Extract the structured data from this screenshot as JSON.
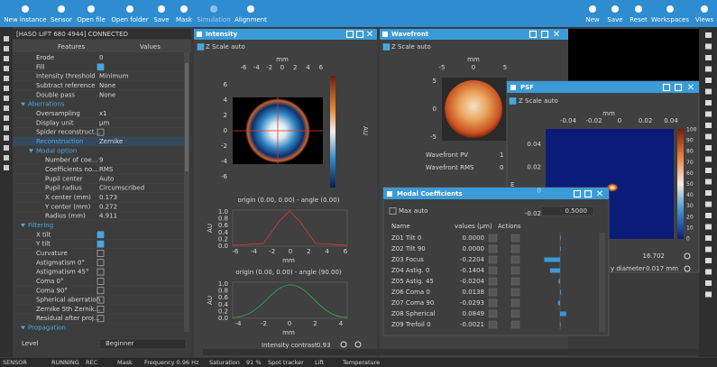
{
  "toolbar": {
    "left": [
      "New instance",
      "Sensor",
      "Open file",
      "Open folder",
      "Save",
      "Mask",
      "Simulation",
      "Alignment"
    ],
    "right": [
      "New",
      "Save",
      "Reset",
      "Workspaces",
      "Views"
    ]
  },
  "properties": {
    "device": "[HASO LIFT 680 4944] CONNECTED",
    "headers": [
      "Features",
      "Values"
    ],
    "rows": [
      {
        "label": "Erode",
        "value": "0"
      },
      {
        "label": "Fill",
        "checked": true
      },
      {
        "label": "Intensity threshold",
        "value": "Minimum"
      },
      {
        "label": "Subtract reference",
        "value": "None"
      },
      {
        "label": "Double pass",
        "value": "None"
      }
    ],
    "sections": [
      {
        "name": "Aberrations",
        "rows": [
          {
            "label": "Oversampling",
            "value": "x1"
          },
          {
            "label": "Display unit",
            "value": "µm"
          },
          {
            "label": "Spider reconstruct...",
            "checked": false
          },
          {
            "label": "Reconstruction",
            "value": "Zernike",
            "selected": true
          }
        ],
        "subsections": [
          {
            "name": "Modal option",
            "rows": [
              {
                "label": "Number of coe...",
                "value": "9"
              },
              {
                "label": "Coefficients no...",
                "value": "RMS"
              },
              {
                "label": "Pupil center",
                "value": "Auto"
              },
              {
                "label": "Pupil radius",
                "value": "Circumscribed"
              },
              {
                "label": "X center (mm)",
                "value": "0.173"
              },
              {
                "label": "Y center (mm)",
                "value": "0.272"
              },
              {
                "label": "Radius (mm)",
                "value": "4.911"
              }
            ]
          }
        ]
      },
      {
        "name": "Filtering",
        "rows": [
          {
            "label": "X tilt",
            "checked": true
          },
          {
            "label": "Y tilt",
            "checked": true
          },
          {
            "label": "Curvature",
            "checked": false
          },
          {
            "label": "Astigmatism 0°",
            "checked": false
          },
          {
            "label": "Astigmatism 45°",
            "checked": false
          },
          {
            "label": "Coma 0°",
            "checked": false
          },
          {
            "label": "Coma 90°",
            "checked": false
          },
          {
            "label": "Spherical aberration",
            "checked": false
          },
          {
            "label": "Zernike 5th Zernik...",
            "checked": false
          },
          {
            "label": "Residual after proj...",
            "checked": false
          }
        ]
      },
      {
        "name": "Propagation"
      }
    ],
    "level": {
      "label": "Level",
      "value": "Beginner"
    }
  },
  "intensity": {
    "title": "Intensity",
    "z_scale": "Z Scale auto",
    "map": {
      "xlabel": "mm",
      "xticks": [
        "-6",
        "-4",
        "-2",
        "0",
        "2",
        "4",
        "6"
      ],
      "yticks": [
        "6",
        "4",
        "2",
        "0",
        "-2",
        "-4",
        "-6"
      ],
      "colorbar_label": "AU"
    },
    "profile_0": {
      "title": "origin (0.00, 0.00) - angle (0.00)",
      "ylabel": "AU",
      "yticks": [
        "1.0",
        "0.8",
        "0.6",
        "0.4",
        "0.2",
        "0.0"
      ],
      "xticks": [
        "-6",
        "-4",
        "-2",
        "0",
        "2",
        "4",
        "6"
      ],
      "xlabel": "mm"
    },
    "profile_90": {
      "title": "origin (0.00, 0.00) - angle (90.00)",
      "ylabel": "AU",
      "yticks": [
        "1.0",
        "0.8",
        "0.6",
        "0.4",
        "0.2",
        "0.0"
      ],
      "xticks": [
        "-4",
        "-2",
        "0",
        "2",
        "4"
      ],
      "xlabel": "mm"
    },
    "contrast": {
      "label": "Intensity contrast",
      "value": "0.93"
    }
  },
  "wavefront": {
    "title": "Wavefront",
    "z_scale": "Z Scale auto",
    "map": {
      "xlabel": "mm",
      "xticks": [
        "-5",
        "0",
        "5"
      ],
      "yticks": [
        "5",
        "0",
        "-5"
      ]
    },
    "stats": [
      {
        "label": "Wavefront PV",
        "value": "1"
      },
      {
        "label": "Wavefront RMS",
        "value": "0"
      }
    ],
    "cut": "E"
  },
  "psf": {
    "title": "PSF",
    "z_scale": "Z Scale auto",
    "map": {
      "xlabel": "mm",
      "xticks": [
        "-0.04",
        "-0.02",
        "0",
        "0.02",
        "0.04"
      ],
      "yticks": [
        "0.04",
        "0.02",
        "0",
        "-0.02"
      ],
      "colorbar_ticks": [
        "100",
        "90",
        "80",
        "70",
        "60",
        "50",
        "40",
        "30",
        "20",
        "10",
        "0"
      ]
    },
    "value": "16.702",
    "diameter": {
      "label": "y diameter",
      "value": "0.017 mm"
    }
  },
  "modal": {
    "title": "Modal Coefficients",
    "max_auto": "Max auto",
    "max": "0.5000",
    "headers": [
      "Name",
      "values (µm)",
      "Actions"
    ],
    "rows": [
      {
        "name": "Z01 Tilt 0",
        "value": "0.0000"
      },
      {
        "name": "Z02 Tilt 90",
        "value": "0.0000"
      },
      {
        "name": "Z03 Focus",
        "value": "-0.2204"
      },
      {
        "name": "Z04 Astig. 0",
        "value": "-0.1404"
      },
      {
        "name": "Z05 Astig. 45",
        "value": "-0.0204"
      },
      {
        "name": "Z06 Coma 0",
        "value": "0.0138"
      },
      {
        "name": "Z07 Coma 90",
        "value": "-0.0293"
      },
      {
        "name": "Z08 Spherical",
        "value": "0.0849"
      },
      {
        "name": "Z09 Trefoil 0",
        "value": "-0.0021"
      }
    ]
  },
  "status": [
    "SENSOR",
    "RUNNING",
    "REC",
    "Mask",
    "Frequency 0.96 Hz",
    "Saturation",
    "91 %",
    "Spot tracker",
    "Lift",
    "Temperature"
  ]
}
